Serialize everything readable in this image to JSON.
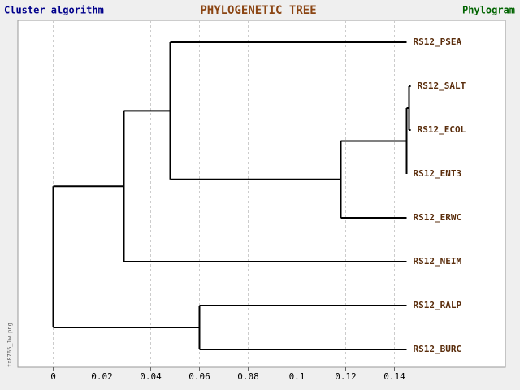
{
  "chart_data": {
    "type": "dendrogram",
    "title": "PHYLOGENETIC TREE",
    "left_label": "Cluster algorithm",
    "right_label": "Phylogram",
    "side_note": "tx8765_1w.png",
    "xlim": [
      -0.0145,
      0.1855
    ],
    "xticks": [
      0,
      0.02,
      0.04,
      0.06,
      0.08,
      0.1,
      0.12,
      0.14
    ],
    "grid": true,
    "color": "#000000",
    "tree": {
      "x": 0,
      "children": [
        {
          "x": 0.029,
          "children": [
            {
              "x": 0.048,
              "children": [
                {
                  "label": "RS12_PSEA",
                  "x": 0.145
                },
                {
                  "x": 0.118,
                  "children": [
                    {
                      "x": 0.145,
                      "children": [
                        {
                          "x": 0.146,
                          "children": [
                            {
                              "label": "RS12_SALT",
                              "x": 0.1467
                            },
                            {
                              "label": "RS12_ECOL",
                              "x": 0.1467
                            }
                          ]
                        },
                        {
                          "label": "RS12_ENT3",
                          "x": 0.145
                        }
                      ]
                    },
                    {
                      "label": "RS12_ERWC",
                      "x": 0.145
                    }
                  ]
                }
              ]
            },
            {
              "label": "RS12_NEIM",
              "x": 0.145
            }
          ]
        },
        {
          "x": 0.06,
          "children": [
            {
              "label": "RS12_RALP",
              "x": 0.145
            },
            {
              "label": "RS12_BURC",
              "x": 0.145
            }
          ]
        }
      ]
    }
  }
}
